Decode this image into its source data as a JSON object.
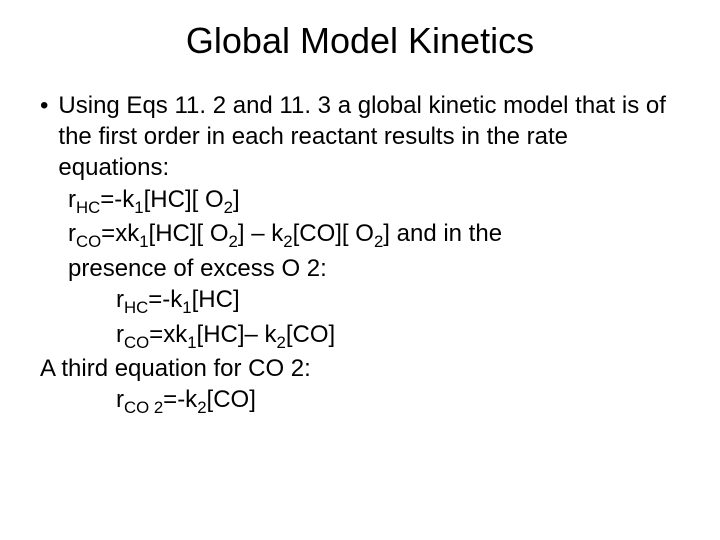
{
  "title": "Global Model Kinetics",
  "bullet_char": "•",
  "intro": "Using Eqs 11. 2 and 11. 3 a global kinetic model that is of the first order in each reactant results in the rate equations:",
  "eq1_pre": "r",
  "eq1_sub1": "HC",
  "eq1_mid1": "=-k",
  "eq1_sub2": "1",
  "eq1_mid2": "[HC][ O",
  "eq1_sub3": "2",
  "eq1_end": "]",
  "eq2_pre": "r",
  "eq2_sub1": "CO",
  "eq2_mid1": "=xk",
  "eq2_sub2": "1",
  "eq2_mid2": "[HC][ O",
  "eq2_sub3": "2",
  "eq2_mid3": "] – k",
  "eq2_sub4": "2",
  "eq2_mid4": "[CO][ O",
  "eq2_sub5": "2",
  "eq2_end": "] and in the",
  "eq2_tail": "presence of excess O 2:",
  "eq3_pre": "r",
  "eq3_sub1": "HC",
  "eq3_mid1": "=-k",
  "eq3_sub2": "1",
  "eq3_end": "[HC]",
  "eq4_pre": "r",
  "eq4_sub1": "CO",
  "eq4_mid1": "=xk",
  "eq4_sub2": "1",
  "eq4_mid2": "[HC]– k",
  "eq4_sub3": "2",
  "eq4_end": "[CO]",
  "third_line": "A third equation for CO 2:",
  "eq5_pre": "r",
  "eq5_sub1": "CO 2",
  "eq5_mid1": "=-k",
  "eq5_sub2": "2",
  "eq5_end": "[CO]",
  "style": {
    "title_fontsize": 36,
    "body_fontsize": 24,
    "background_color": "#ffffff",
    "text_color": "#000000",
    "font_family": "Arial"
  }
}
